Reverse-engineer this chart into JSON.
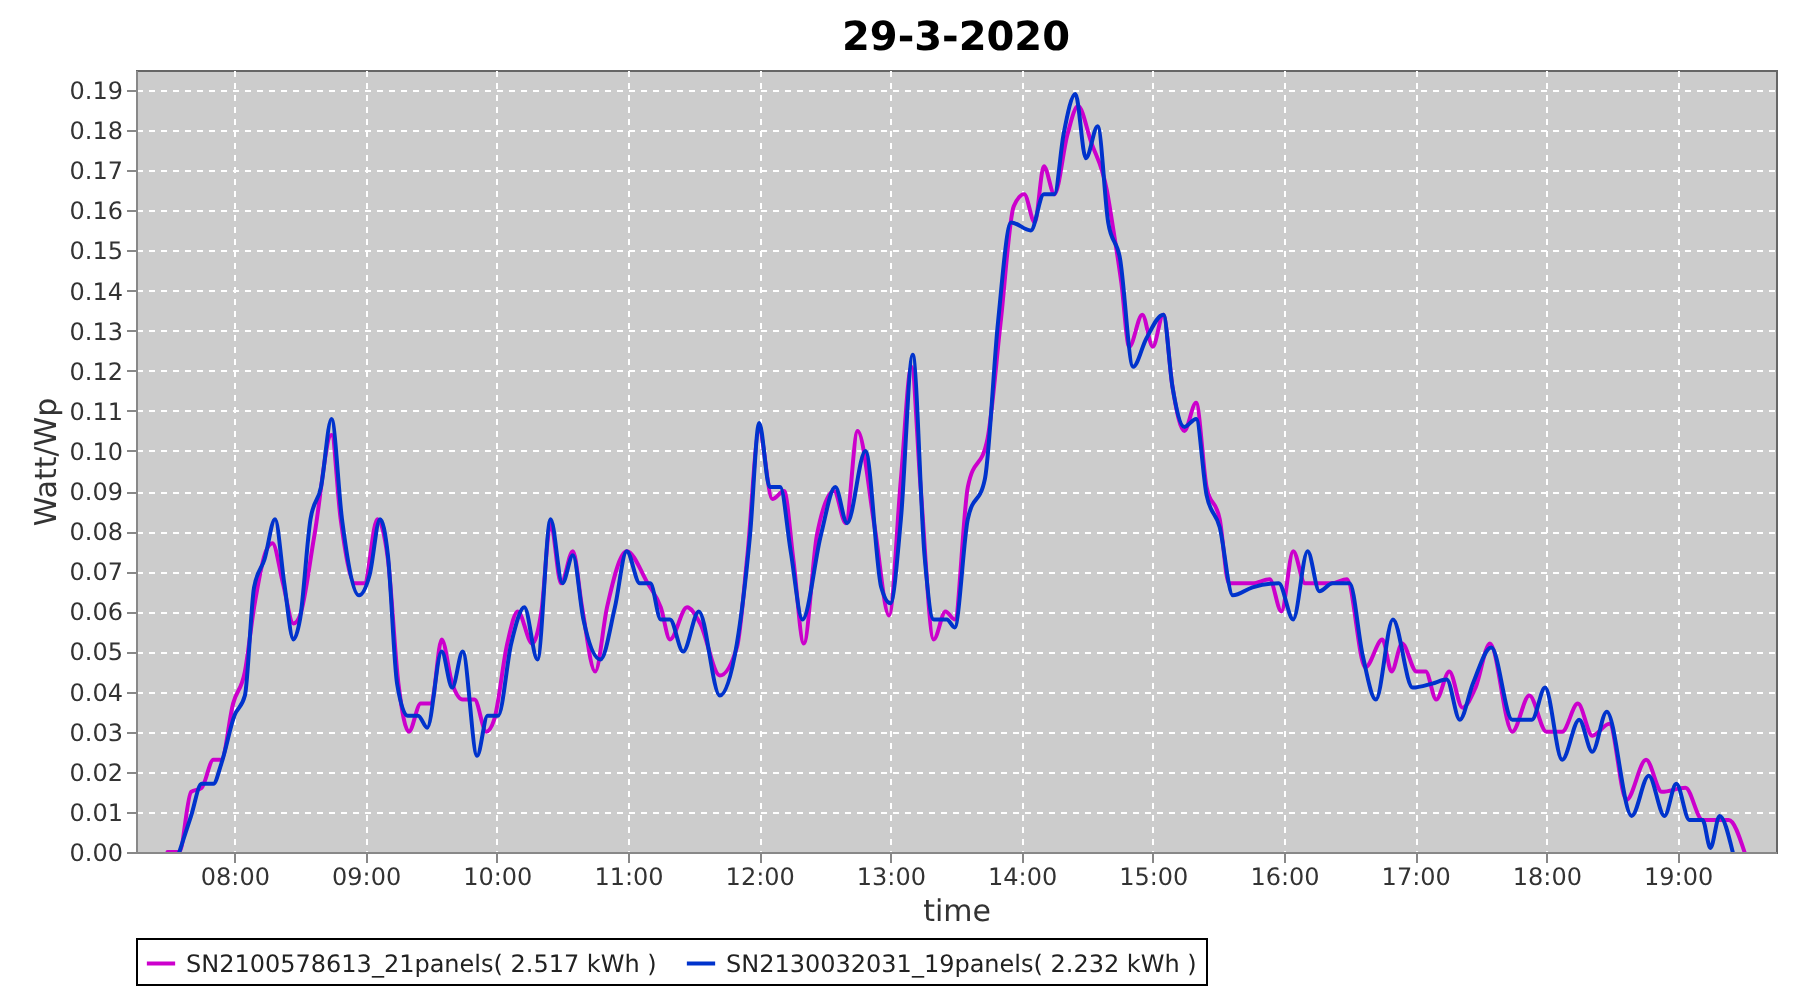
{
  "chart_data": {
    "type": "line",
    "title": "29-3-2020",
    "xlabel": "time",
    "ylabel": "Watt/Wp",
    "xlim": [
      7.25,
      19.75
    ],
    "xticks": [
      {
        "value": 8,
        "label": "08:00"
      },
      {
        "value": 9,
        "label": "09:00"
      },
      {
        "value": 10,
        "label": "10:00"
      },
      {
        "value": 11,
        "label": "11:00"
      },
      {
        "value": 12,
        "label": "12:00"
      },
      {
        "value": 13,
        "label": "13:00"
      },
      {
        "value": 14,
        "label": "14:00"
      },
      {
        "value": 15,
        "label": "15:00"
      },
      {
        "value": 16,
        "label": "16:00"
      },
      {
        "value": 17,
        "label": "17:00"
      },
      {
        "value": 18,
        "label": "18:00"
      },
      {
        "value": 19,
        "label": "19:00"
      }
    ],
    "ylim": [
      0,
      0.195
    ],
    "yticks": [
      {
        "value": 0,
        "label": "0.00"
      },
      {
        "value": 0.01,
        "label": "0.01"
      },
      {
        "value": 0.02,
        "label": "0.02"
      },
      {
        "value": 0.03,
        "label": "0.03"
      },
      {
        "value": 0.04,
        "label": "0.04"
      },
      {
        "value": 0.05,
        "label": "0.05"
      },
      {
        "value": 0.06,
        "label": "0.06"
      },
      {
        "value": 0.07,
        "label": "0.07"
      },
      {
        "value": 0.08,
        "label": "0.08"
      },
      {
        "value": 0.09,
        "label": "0.09"
      },
      {
        "value": 0.1,
        "label": "0.10"
      },
      {
        "value": 0.11,
        "label": "0.11"
      },
      {
        "value": 0.12,
        "label": "0.12"
      },
      {
        "value": 0.13,
        "label": "0.13"
      },
      {
        "value": 0.14,
        "label": "0.14"
      },
      {
        "value": 0.15,
        "label": "0.15"
      },
      {
        "value": 0.16,
        "label": "0.16"
      },
      {
        "value": 0.17,
        "label": "0.17"
      },
      {
        "value": 0.18,
        "label": "0.18"
      },
      {
        "value": 0.19,
        "label": "0.19"
      }
    ],
    "grid": true,
    "legend": "bottom",
    "line_style": "solid",
    "series": [
      {
        "name": "SN2100578613_21panels( 2.517 kWh )",
        "color": "#cc00cc",
        "x": [
          7.49,
          7.58,
          7.67,
          7.75,
          7.84,
          7.9,
          7.99,
          8.08,
          8.15,
          8.24,
          8.29,
          8.37,
          8.45,
          8.5,
          8.61,
          8.74,
          8.81,
          8.92,
          8.99,
          9.09,
          9.17,
          9.25,
          9.33,
          9.42,
          9.5,
          9.58,
          9.66,
          9.74,
          9.83,
          9.92,
          9.98,
          10.08,
          10.16,
          10.27,
          10.34,
          10.41,
          10.49,
          10.58,
          10.65,
          10.75,
          10.84,
          10.99,
          11.15,
          11.25,
          11.32,
          11.45,
          11.55,
          11.7,
          11.83,
          11.91,
          12.0,
          12.1,
          12.19,
          12.26,
          12.34,
          12.44,
          12.57,
          12.66,
          12.75,
          12.88,
          12.99,
          13.08,
          13.16,
          13.23,
          13.33,
          13.42,
          13.49,
          13.59,
          13.74,
          13.84,
          13.94,
          14.02,
          14.1,
          14.17,
          14.25,
          14.35,
          14.43,
          14.53,
          14.65,
          14.7,
          14.76,
          14.82,
          14.92,
          15.0,
          15.08,
          15.15,
          15.24,
          15.33,
          15.41,
          15.51,
          15.58,
          15.76,
          15.89,
          15.98,
          16.07,
          16.16,
          16.36,
          16.48,
          16.62,
          16.75,
          16.82,
          16.9,
          17.01,
          17.08,
          17.16,
          17.26,
          17.36,
          17.46,
          17.57,
          17.74,
          17.87,
          18.0,
          18.12,
          18.24,
          18.35,
          18.48,
          18.61,
          18.76,
          18.88,
          19.06,
          19.19,
          19.39,
          19.51
        ],
        "values": [
          0,
          0,
          0.015,
          0.016,
          0.023,
          0.023,
          0.037,
          0.045,
          0.061,
          0.075,
          0.077,
          0.067,
          0.057,
          0.059,
          0.079,
          0.104,
          0.083,
          0.067,
          0.067,
          0.083,
          0.073,
          0.042,
          0.03,
          0.037,
          0.037,
          0.053,
          0.042,
          0.038,
          0.038,
          0.03,
          0.033,
          0.052,
          0.06,
          0.052,
          0.06,
          0.082,
          0.067,
          0.075,
          0.061,
          0.045,
          0.061,
          0.075,
          0.067,
          0.061,
          0.053,
          0.061,
          0.057,
          0.044,
          0.051,
          0.074,
          0.105,
          0.088,
          0.09,
          0.073,
          0.052,
          0.079,
          0.09,
          0.082,
          0.105,
          0.081,
          0.059,
          0.093,
          0.121,
          0.091,
          0.053,
          0.06,
          0.058,
          0.091,
          0.103,
          0.132,
          0.161,
          0.164,
          0.157,
          0.171,
          0.164,
          0.179,
          0.186,
          0.177,
          0.165,
          0.155,
          0.142,
          0.126,
          0.134,
          0.126,
          0.134,
          0.116,
          0.105,
          0.112,
          0.091,
          0.083,
          0.067,
          0.067,
          0.068,
          0.06,
          0.075,
          0.067,
          0.067,
          0.068,
          0.046,
          0.053,
          0.045,
          0.052,
          0.045,
          0.045,
          0.038,
          0.045,
          0.036,
          0.041,
          0.052,
          0.03,
          0.039,
          0.03,
          0.03,
          0.037,
          0.029,
          0.032,
          0.013,
          0.023,
          0.015,
          0.016,
          0.008,
          0.008,
          0
        ]
      },
      {
        "name": "SN2130032031_19panels( 2.232 kWh )",
        "color": "#0033cc",
        "x": [
          7.58,
          7.67,
          7.75,
          7.84,
          7.9,
          8.0,
          8.08,
          8.15,
          8.23,
          8.31,
          8.38,
          8.45,
          8.5,
          8.58,
          8.66,
          8.74,
          8.82,
          8.95,
          9.03,
          9.11,
          9.17,
          9.24,
          9.32,
          9.4,
          9.47,
          9.58,
          9.66,
          9.74,
          9.85,
          9.93,
          10.01,
          10.11,
          10.21,
          10.31,
          10.41,
          10.5,
          10.58,
          10.66,
          10.79,
          10.9,
          10.99,
          11.09,
          11.17,
          11.25,
          11.32,
          11.42,
          11.54,
          11.7,
          11.83,
          11.93,
          12.0,
          12.08,
          12.16,
          12.24,
          12.33,
          12.47,
          12.58,
          12.67,
          12.81,
          12.93,
          13.0,
          13.08,
          13.17,
          13.26,
          13.33,
          13.43,
          13.49,
          13.59,
          13.72,
          13.82,
          13.92,
          14.07,
          14.17,
          14.25,
          14.32,
          14.41,
          14.49,
          14.58,
          14.66,
          14.75,
          14.85,
          14.95,
          15.08,
          15.15,
          15.24,
          15.33,
          15.41,
          15.51,
          15.61,
          15.76,
          15.96,
          16.07,
          16.18,
          16.27,
          16.37,
          16.5,
          16.6,
          16.7,
          16.83,
          16.98,
          17.13,
          17.24,
          17.34,
          17.44,
          17.58,
          17.74,
          17.89,
          17.99,
          18.12,
          18.25,
          18.35,
          18.46,
          18.65,
          18.78,
          18.9,
          18.99,
          19.09,
          19.19,
          19.25,
          19.32,
          19.42
        ],
        "values": [
          0,
          0.009,
          0.017,
          0.017,
          0.022,
          0.034,
          0.039,
          0.066,
          0.073,
          0.083,
          0.067,
          0.053,
          0.058,
          0.083,
          0.091,
          0.108,
          0.083,
          0.064,
          0.069,
          0.083,
          0.074,
          0.042,
          0.034,
          0.034,
          0.031,
          0.05,
          0.041,
          0.05,
          0.024,
          0.034,
          0.034,
          0.052,
          0.061,
          0.048,
          0.083,
          0.067,
          0.074,
          0.058,
          0.048,
          0.061,
          0.075,
          0.067,
          0.067,
          0.058,
          0.058,
          0.05,
          0.06,
          0.039,
          0.052,
          0.079,
          0.107,
          0.091,
          0.091,
          0.075,
          0.058,
          0.079,
          0.091,
          0.082,
          0.1,
          0.066,
          0.062,
          0.083,
          0.124,
          0.074,
          0.058,
          0.058,
          0.056,
          0.083,
          0.093,
          0.132,
          0.157,
          0.155,
          0.164,
          0.164,
          0.179,
          0.189,
          0.173,
          0.181,
          0.157,
          0.148,
          0.121,
          0.128,
          0.134,
          0.116,
          0.106,
          0.108,
          0.089,
          0.081,
          0.064,
          0.066,
          0.067,
          0.058,
          0.075,
          0.065,
          0.067,
          0.067,
          0.049,
          0.038,
          0.058,
          0.041,
          0.042,
          0.043,
          0.033,
          0.042,
          0.051,
          0.033,
          0.033,
          0.041,
          0.023,
          0.033,
          0.025,
          0.035,
          0.009,
          0.019,
          0.009,
          0.017,
          0.008,
          0.008,
          0.001,
          0.009,
          0
        ]
      }
    ]
  }
}
